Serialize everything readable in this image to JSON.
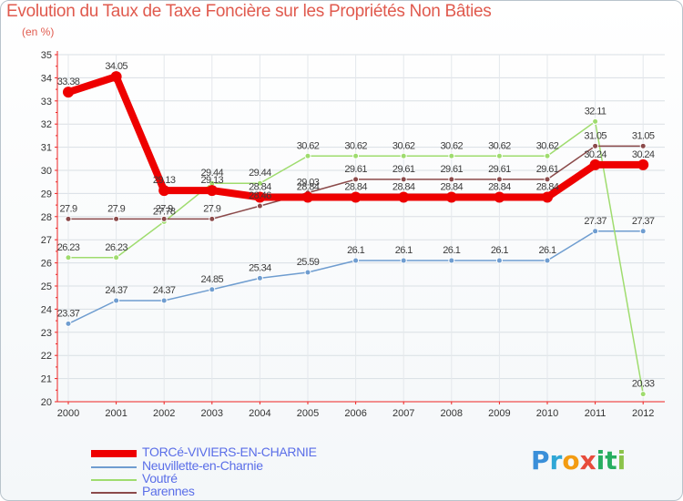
{
  "title": "Evolution du Taux de Taxe Foncière sur les Propriétés Non Bâties",
  "subtitle": "(en %)",
  "logo": {
    "text": "Proxiti",
    "letters": [
      "P",
      "r",
      "o",
      "x",
      "i",
      "t",
      "i"
    ]
  },
  "chart_data": {
    "type": "line",
    "title": "Evolution du Taux de Taxe Foncière sur les Propriétés Non Bâties",
    "ylabel": "(en %)",
    "xlabel": "",
    "ylim": [
      20,
      35
    ],
    "grid": true,
    "x": [
      "2000",
      "2001",
      "2002",
      "2003",
      "2004",
      "2005",
      "2006",
      "2007",
      "2008",
      "2009",
      "2010",
      "2011",
      "2012"
    ],
    "yticks": [
      "20",
      "21",
      "22",
      "23",
      "24",
      "25",
      "26",
      "27",
      "28",
      "29",
      "30",
      "31",
      "32",
      "33",
      "34",
      "35"
    ],
    "series": [
      {
        "name": "TORCé-VIVIERS-EN-CHARNIE",
        "color": "#ee0000",
        "values": [
          33.38,
          34.05,
          29.13,
          29.13,
          28.84,
          28.84,
          28.84,
          28.84,
          28.84,
          28.84,
          28.84,
          30.24,
          30.24
        ],
        "labels": [
          "33.38",
          "34.05",
          "29.13",
          "29.13",
          "28.84",
          "28.84",
          "28.84",
          "28.84",
          "28.84",
          "28.84",
          "28.84",
          "30.24",
          "30.24"
        ]
      },
      {
        "name": "Neuvillette-en-Charnie",
        "color": "#6f9dd0",
        "values": [
          23.37,
          24.37,
          24.37,
          24.85,
          25.34,
          25.59,
          26.1,
          26.1,
          26.1,
          26.1,
          26.1,
          27.37,
          27.37
        ],
        "labels": [
          "23.37",
          "24.37",
          "24.37",
          "24.85",
          "25.34",
          "25.59",
          "26.1",
          "26.1",
          "26.1",
          "26.1",
          "26.1",
          "27.37",
          "27.37"
        ]
      },
      {
        "name": "Voutré",
        "color": "#9fdc6e",
        "values": [
          26.23,
          26.23,
          27.78,
          29.44,
          29.44,
          30.62,
          30.62,
          30.62,
          30.62,
          30.62,
          30.62,
          32.11,
          20.33
        ],
        "labels": [
          "26.23",
          "26.23",
          "27.78",
          "29.44",
          "29.44",
          "30.62",
          "30.62",
          "30.62",
          "30.62",
          "30.62",
          "30.62",
          "32.11",
          "20.33"
        ]
      },
      {
        "name": "Parennes",
        "color": "#8b4a4a",
        "values": [
          27.9,
          27.9,
          27.9,
          27.9,
          28.46,
          29.03,
          29.61,
          29.61,
          29.61,
          29.61,
          29.61,
          31.05,
          31.05
        ],
        "labels": [
          "27.9",
          "27.9",
          "27.9",
          "27.9",
          "28.46",
          "29.03",
          "29.61",
          "29.61",
          "29.61",
          "29.61",
          "29.61",
          "31.05",
          "31.05"
        ]
      }
    ]
  }
}
